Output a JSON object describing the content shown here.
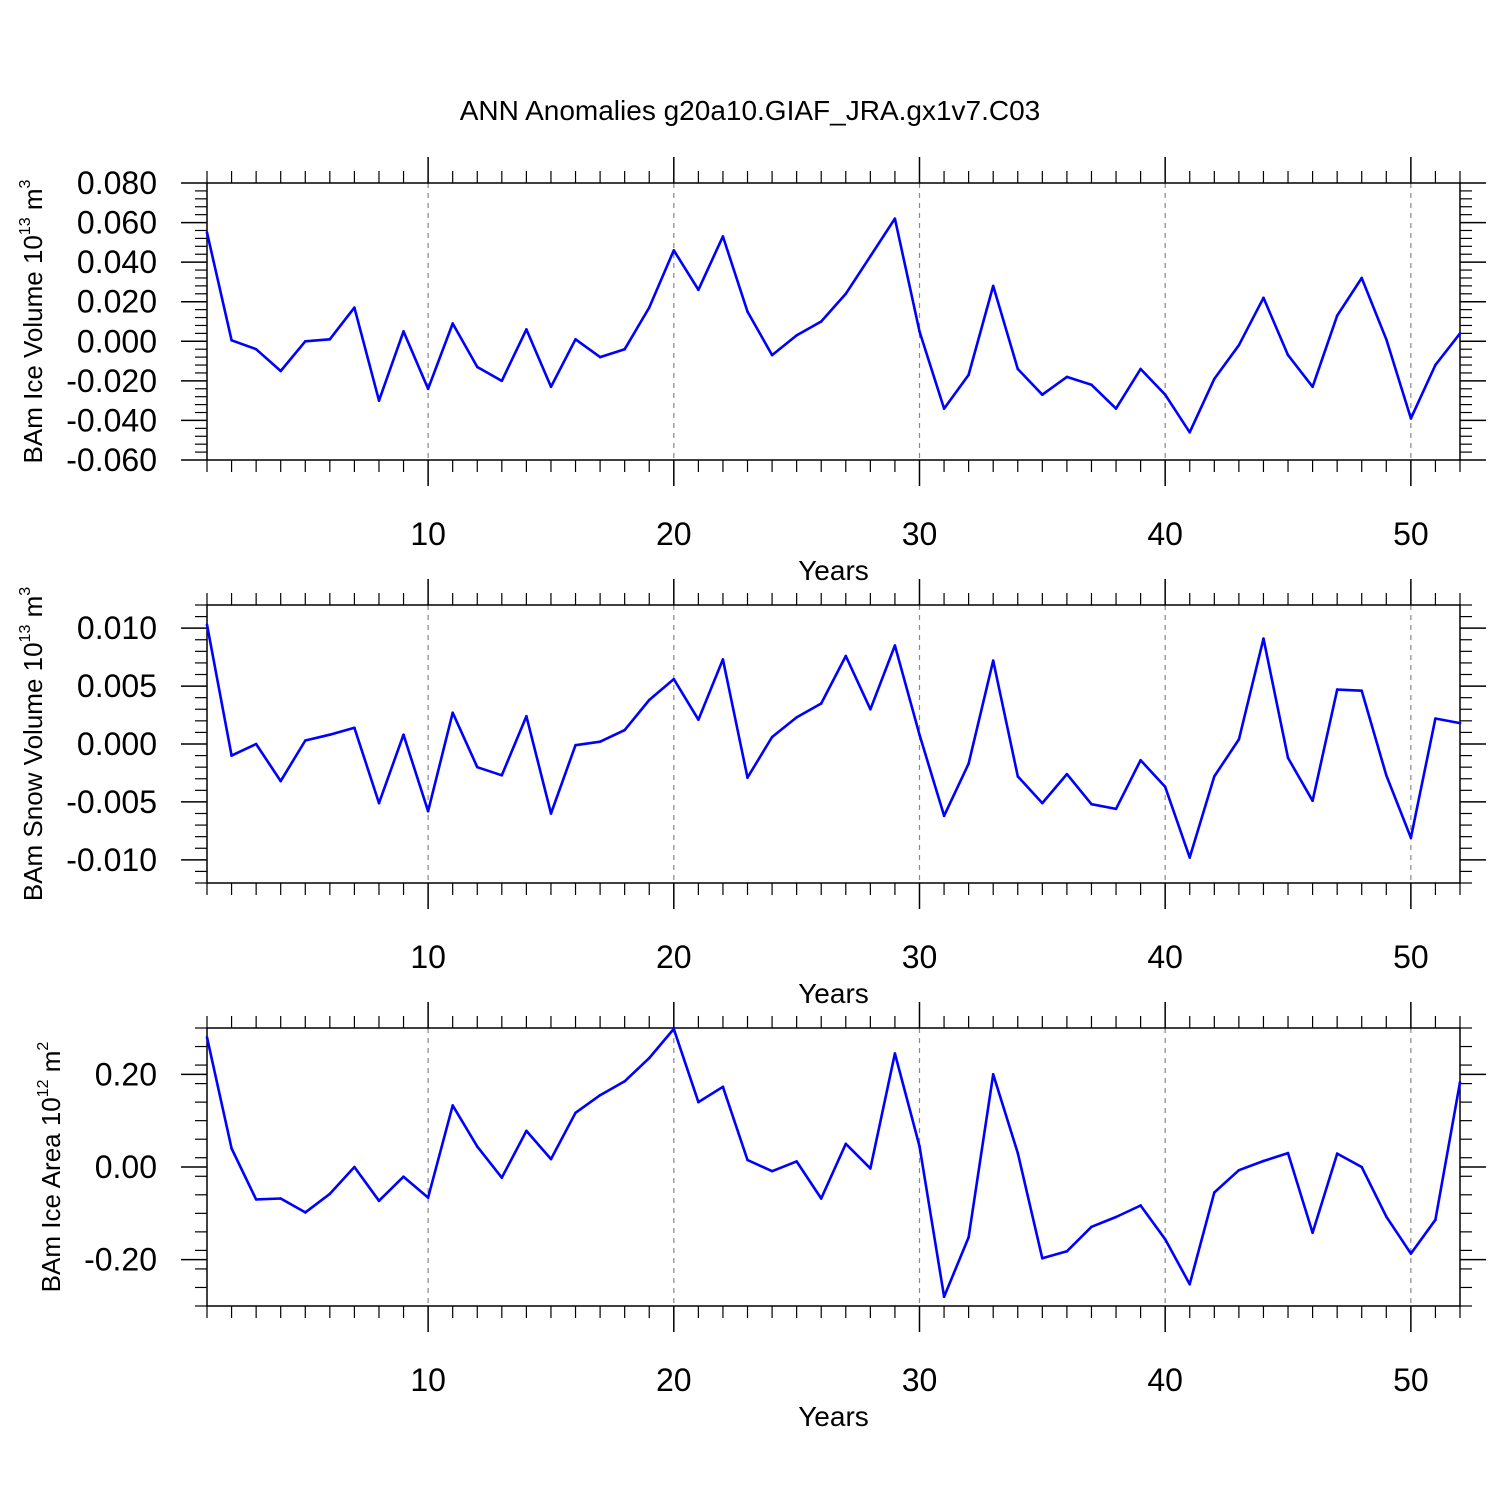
{
  "figure": {
    "title": "ANN Anomalies g20a10.GIAF_JRA.gx1v7.C03",
    "line_color": "#0000ff",
    "grid_color": "#888888"
  },
  "chart_data": [
    {
      "type": "line",
      "ylabel": {
        "main": "BAm Ice Volume 10",
        "exp": "13",
        "unit": " m",
        "unit_exp": "3"
      },
      "xlabel": "Years",
      "xlim": [
        1,
        52
      ],
      "ylim": [
        -0.06,
        0.08
      ],
      "xticks": [
        10,
        20,
        30,
        40,
        50
      ],
      "xtick_labels": [
        "10",
        "20",
        "30",
        "40",
        "50"
      ],
      "yticks": [
        -0.06,
        -0.04,
        -0.02,
        0.0,
        0.02,
        0.04,
        0.06,
        0.08
      ],
      "ytick_labels": [
        "-0.060",
        "-0.040",
        "-0.020",
        "0.000",
        "0.020",
        "0.040",
        "0.060",
        "0.080"
      ],
      "grid_x": true,
      "x": [
        1,
        2,
        3,
        4,
        5,
        6,
        7,
        8,
        9,
        10,
        11,
        12,
        13,
        14,
        15,
        16,
        17,
        18,
        19,
        20,
        21,
        22,
        23,
        24,
        25,
        26,
        27,
        28,
        29,
        30,
        31,
        32,
        33,
        34,
        35,
        36,
        37,
        38,
        39,
        40,
        41,
        42,
        43,
        44,
        45,
        46,
        47,
        48,
        49,
        50,
        51,
        52
      ],
      "values": [
        0.055,
        0.0005,
        -0.004,
        -0.015,
        0.0,
        0.001,
        0.017,
        -0.03,
        0.005,
        -0.024,
        0.009,
        -0.013,
        -0.02,
        0.006,
        -0.023,
        0.001,
        -0.008,
        -0.004,
        0.017,
        0.046,
        0.026,
        0.053,
        0.015,
        -0.007,
        0.003,
        0.01,
        0.024,
        0.043,
        0.062,
        0.005,
        -0.034,
        -0.017,
        0.028,
        -0.014,
        -0.027,
        -0.018,
        -0.022,
        -0.034,
        -0.014,
        -0.027,
        -0.046,
        -0.019,
        -0.002,
        0.022,
        -0.007,
        -0.023,
        0.013,
        0.032,
        0.001,
        -0.039,
        -0.012,
        0.004
      ]
    },
    {
      "type": "line",
      "ylabel": {
        "main": "BAm Snow Volume 10",
        "exp": "13",
        "unit": " m",
        "unit_exp": "3"
      },
      "xlabel": "Years",
      "xlim": [
        1,
        52
      ],
      "ylim": [
        -0.012,
        0.012
      ],
      "xticks": [
        10,
        20,
        30,
        40,
        50
      ],
      "xtick_labels": [
        "10",
        "20",
        "30",
        "40",
        "50"
      ],
      "yticks": [
        -0.01,
        -0.005,
        0.0,
        0.005,
        0.01
      ],
      "ytick_labels": [
        "-0.010",
        "-0.005",
        "0.000",
        "0.005",
        "0.010"
      ],
      "grid_x": true,
      "x": [
        1,
        2,
        3,
        4,
        5,
        6,
        7,
        8,
        9,
        10,
        11,
        12,
        13,
        14,
        15,
        16,
        17,
        18,
        19,
        20,
        21,
        22,
        23,
        24,
        25,
        26,
        27,
        28,
        29,
        30,
        31,
        32,
        33,
        34,
        35,
        36,
        37,
        38,
        39,
        40,
        41,
        42,
        43,
        44,
        45,
        46,
        47,
        48,
        49,
        50,
        51,
        52
      ],
      "values": [
        0.0103,
        -0.001,
        0.0,
        -0.0032,
        0.0003,
        0.0008,
        0.0014,
        -0.0051,
        0.0008,
        -0.0058,
        0.0027,
        -0.002,
        -0.0027,
        0.0024,
        -0.006,
        -0.0001,
        0.0002,
        0.0012,
        0.0038,
        0.0056,
        0.0021,
        0.0073,
        -0.0029,
        0.0006,
        0.0023,
        0.0035,
        0.0076,
        0.003,
        0.0085,
        0.0008,
        -0.0062,
        -0.0017,
        0.0072,
        -0.0028,
        -0.0051,
        -0.0026,
        -0.0052,
        -0.0056,
        -0.0014,
        -0.0037,
        -0.0098,
        -0.0028,
        0.0004,
        0.0091,
        -0.0012,
        -0.0049,
        0.0047,
        0.0046,
        -0.0027,
        -0.0081,
        0.0022,
        0.0018
      ]
    },
    {
      "type": "line",
      "ylabel": {
        "main": "BAm Ice Area 10",
        "exp": "12",
        "unit": " m",
        "unit_exp": "2"
      },
      "xlabel": "Years",
      "xlim": [
        1,
        52
      ],
      "ylim": [
        -0.3,
        0.3
      ],
      "xticks": [
        10,
        20,
        30,
        40,
        50
      ],
      "xtick_labels": [
        "10",
        "20",
        "30",
        "40",
        "50"
      ],
      "yticks": [
        -0.2,
        0.0,
        0.2
      ],
      "ytick_labels": [
        "-0.20",
        "0.00",
        "0.20"
      ],
      "grid_x": true,
      "x": [
        1,
        2,
        3,
        4,
        5,
        6,
        7,
        8,
        9,
        10,
        11,
        12,
        13,
        14,
        15,
        16,
        17,
        18,
        19,
        20,
        21,
        22,
        23,
        24,
        25,
        26,
        27,
        28,
        29,
        30,
        31,
        32,
        33,
        34,
        35,
        36,
        37,
        38,
        39,
        40,
        41,
        42,
        43,
        44,
        45,
        46,
        47,
        48,
        49,
        50,
        51,
        52
      ],
      "values": [
        0.28,
        0.04,
        -0.07,
        -0.068,
        -0.098,
        -0.058,
        0.0,
        -0.073,
        -0.021,
        -0.066,
        0.133,
        0.044,
        -0.023,
        0.078,
        0.017,
        0.117,
        0.155,
        0.185,
        0.235,
        0.298,
        0.14,
        0.173,
        0.015,
        -0.009,
        0.012,
        -0.068,
        0.05,
        -0.003,
        0.245,
        0.045,
        -0.28,
        -0.152,
        0.2,
        0.03,
        -0.197,
        -0.182,
        -0.129,
        -0.108,
        -0.083,
        -0.156,
        -0.253,
        -0.055,
        -0.007,
        0.013,
        0.03,
        -0.142,
        0.029,
        0.0,
        -0.107,
        -0.187,
        -0.114,
        0.183
      ]
    }
  ]
}
